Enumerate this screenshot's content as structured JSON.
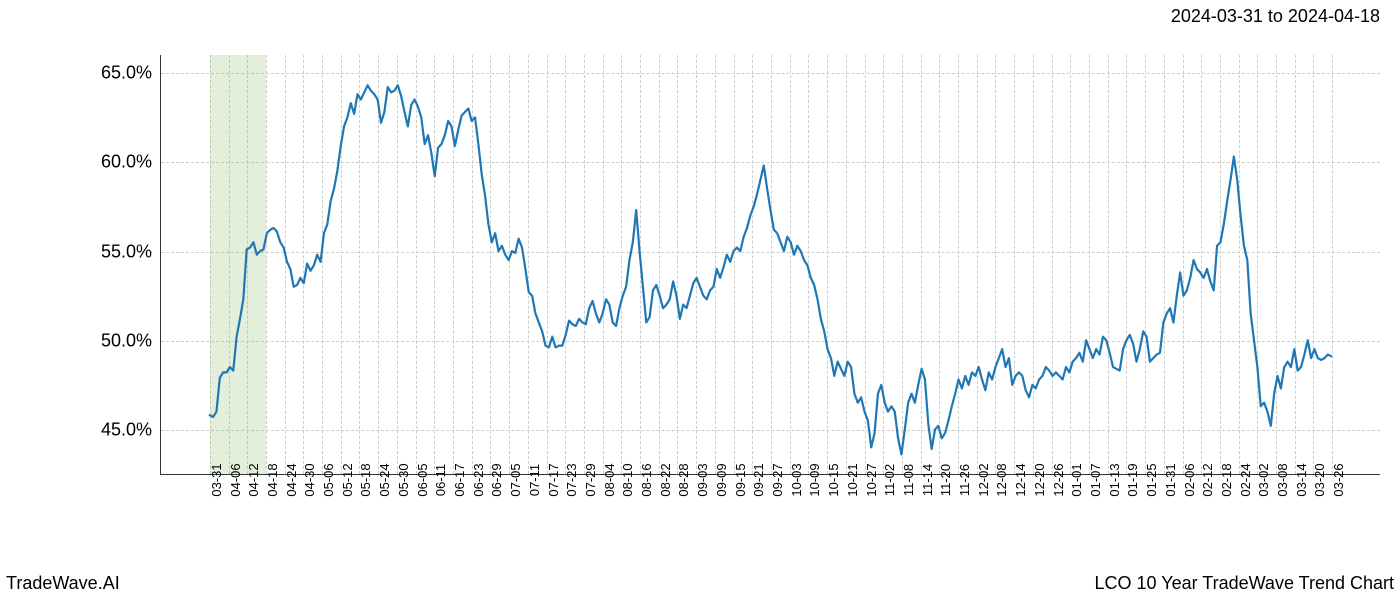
{
  "header": {
    "date_range": "2024-03-31 to 2024-04-18"
  },
  "footer": {
    "left": "TradeWave.AI",
    "right": "LCO 10 Year TradeWave Trend Chart"
  },
  "chart": {
    "type": "line",
    "background_color": "#ffffff",
    "line_color": "#1f77b4",
    "line_width": 2.2,
    "grid_color": "#cccccc",
    "grid_dash": true,
    "axis_color": "#333333",
    "ylim": [
      42.5,
      66.0
    ],
    "ytick_values": [
      45.0,
      50.0,
      55.0,
      60.0,
      65.0
    ],
    "ytick_labels": [
      "45.0%",
      "50.0%",
      "55.0%",
      "60.0%",
      "65.0%"
    ],
    "ytick_fontsize": 18,
    "xtick_labels": [
      "03-31",
      "04-06",
      "04-12",
      "04-18",
      "04-24",
      "04-30",
      "05-06",
      "05-12",
      "05-18",
      "05-24",
      "05-30",
      "06-05",
      "06-11",
      "06-17",
      "06-23",
      "06-29",
      "07-05",
      "07-11",
      "07-17",
      "07-23",
      "07-29",
      "08-04",
      "08-10",
      "08-16",
      "08-22",
      "08-28",
      "09-03",
      "09-09",
      "09-15",
      "09-21",
      "09-27",
      "10-03",
      "10-09",
      "10-15",
      "10-21",
      "10-27",
      "11-02",
      "11-08",
      "11-14",
      "11-20",
      "11-26",
      "12-02",
      "12-08",
      "12-14",
      "12-20",
      "12-26",
      "01-01",
      "01-07",
      "01-13",
      "01-19",
      "01-25",
      "01-31",
      "02-06",
      "02-12",
      "02-18",
      "02-24",
      "03-02",
      "03-08",
      "03-14",
      "03-20",
      "03-26"
    ],
    "xtick_fontsize": 13,
    "xtick_rotation": -90,
    "highlight": {
      "color": "rgba(144,190,109,0.25)",
      "x_start_idx": 0,
      "x_end_idx": 3
    },
    "series": {
      "values": [
        45.8,
        45.7,
        46.0,
        47.9,
        48.2,
        48.2,
        48.5,
        48.3,
        50.2,
        51.2,
        52.3,
        55.1,
        55.2,
        55.5,
        54.8,
        55.0,
        55.1,
        56.0,
        56.2,
        56.3,
        56.1,
        55.5,
        55.2,
        54.4,
        54.0,
        53.0,
        53.1,
        53.5,
        53.2,
        54.3,
        53.9,
        54.2,
        54.8,
        54.4,
        56.0,
        56.5,
        57.8,
        58.5,
        59.5,
        60.9,
        62.0,
        62.5,
        63.3,
        62.7,
        63.8,
        63.5,
        63.9,
        64.3,
        64.0,
        63.8,
        63.5,
        62.2,
        62.8,
        64.2,
        63.9,
        64.0,
        64.3,
        63.7,
        62.8,
        62.0,
        63.2,
        63.5,
        63.1,
        62.5,
        61.0,
        61.5,
        60.5,
        59.2,
        60.8,
        61.0,
        61.5,
        62.3,
        62.0,
        60.9,
        61.8,
        62.6,
        62.8,
        63.0,
        62.3,
        62.5,
        61.0,
        59.3,
        58.1,
        56.5,
        55.5,
        56.0,
        55.0,
        55.3,
        54.8,
        54.5,
        55.0,
        54.9,
        55.7,
        55.2,
        54.0,
        52.7,
        52.5,
        51.5,
        51.0,
        50.5,
        49.7,
        49.6,
        50.2,
        49.6,
        49.7,
        49.7,
        50.3,
        51.1,
        50.9,
        50.8,
        51.2,
        51.0,
        50.9,
        51.8,
        52.2,
        51.5,
        51.0,
        51.5,
        52.3,
        52.0,
        51.0,
        50.8,
        51.8,
        52.5,
        53.0,
        54.5,
        55.5,
        57.3,
        55.0,
        53.0,
        51.0,
        51.3,
        52.8,
        53.1,
        52.5,
        51.8,
        52.0,
        52.3,
        53.3,
        52.5,
        51.2,
        52.0,
        51.8,
        52.5,
        53.2,
        53.5,
        53.0,
        52.5,
        52.3,
        52.8,
        53.0,
        54.0,
        53.5,
        54.1,
        54.8,
        54.4,
        55.0,
        55.2,
        55.0,
        55.8,
        56.3,
        57.0,
        57.5,
        58.2,
        59.0,
        59.8,
        58.5,
        57.3,
        56.2,
        56.0,
        55.5,
        55.0,
        55.8,
        55.5,
        54.8,
        55.3,
        55.0,
        54.5,
        54.2,
        53.5,
        53.1,
        52.3,
        51.2,
        50.5,
        49.5,
        49.0,
        48.0,
        48.8,
        48.4,
        48.0,
        48.8,
        48.5,
        47.0,
        46.5,
        46.8,
        46.0,
        45.5,
        44.0,
        44.8,
        47.0,
        47.5,
        46.5,
        46.0,
        46.3,
        46.0,
        44.5,
        43.6,
        45.0,
        46.5,
        47.0,
        46.5,
        47.5,
        48.4,
        47.8,
        45.3,
        43.9,
        45.0,
        45.2,
        44.5,
        44.8,
        45.5,
        46.3,
        47.0,
        47.8,
        47.3,
        48.0,
        47.5,
        48.2,
        48.0,
        48.5,
        47.8,
        47.2,
        48.2,
        47.8,
        48.5,
        49.0,
        49.5,
        48.5,
        49.0,
        47.5,
        48.0,
        48.2,
        48.0,
        47.2,
        46.8,
        47.5,
        47.3,
        47.8,
        48.0,
        48.5,
        48.3,
        48.0,
        48.2,
        48.0,
        47.8,
        48.5,
        48.2,
        48.8,
        49.0,
        49.3,
        48.8,
        50.0,
        49.5,
        49.0,
        49.5,
        49.2,
        50.2,
        50.0,
        49.3,
        48.5,
        48.4,
        48.3,
        49.5,
        50.0,
        50.3,
        49.8,
        48.8,
        49.5,
        50.5,
        50.2,
        48.8,
        49.0,
        49.2,
        49.3,
        51.0,
        51.5,
        51.8,
        51.0,
        52.5,
        53.8,
        52.5,
        52.8,
        53.5,
        54.5,
        54.0,
        53.8,
        53.5,
        54.0,
        53.3,
        52.8,
        55.3,
        55.5,
        56.5,
        57.8,
        59.0,
        60.3,
        59.0,
        57.0,
        55.3,
        54.5,
        51.5,
        50.0,
        48.5,
        46.3,
        46.5,
        46.0,
        45.2,
        47.0,
        48.0,
        47.3,
        48.5,
        48.8,
        48.5,
        49.5,
        48.3,
        48.5,
        49.2,
        50.0,
        49.0,
        49.5,
        49.0,
        48.9,
        49.0,
        49.2,
        49.1
      ]
    }
  }
}
